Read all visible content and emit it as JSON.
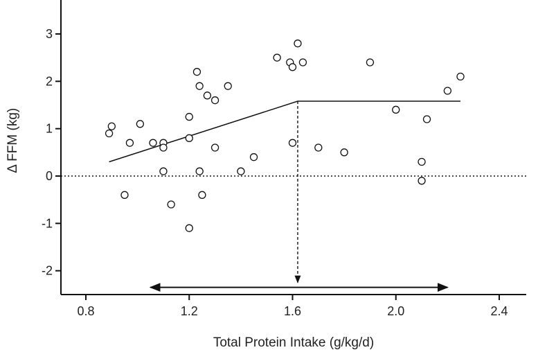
{
  "chart_data": {
    "type": "scatter",
    "title": "",
    "xlabel": "Total Protein Intake (g/kg/d)",
    "ylabel": "Δ FFM (kg)",
    "xlim": [
      0.7,
      2.5
    ],
    "ylim": [
      -2.5,
      3.7
    ],
    "x_ticks": [
      0.8,
      1.2,
      1.6,
      2.0,
      2.4
    ],
    "x_tick_labels": [
      "0.8",
      "1.2",
      "1.6",
      "2.0",
      "2.4"
    ],
    "y_ticks": [
      -2,
      -1,
      0,
      1,
      2,
      3
    ],
    "y_tick_labels": [
      "-2",
      "-1",
      "0",
      "1",
      "2",
      "3"
    ],
    "grid": false,
    "points": [
      {
        "x": 0.89,
        "y": 0.9
      },
      {
        "x": 0.9,
        "y": 1.05
      },
      {
        "x": 0.95,
        "y": -0.4
      },
      {
        "x": 0.97,
        "y": 0.7
      },
      {
        "x": 1.01,
        "y": 1.1
      },
      {
        "x": 1.06,
        "y": 0.7
      },
      {
        "x": 1.1,
        "y": 0.7
      },
      {
        "x": 1.1,
        "y": 0.6
      },
      {
        "x": 1.1,
        "y": 0.1
      },
      {
        "x": 1.13,
        "y": -0.6
      },
      {
        "x": 1.2,
        "y": 1.25
      },
      {
        "x": 1.2,
        "y": 0.8
      },
      {
        "x": 1.2,
        "y": -1.1
      },
      {
        "x": 1.23,
        "y": 2.2
      },
      {
        "x": 1.24,
        "y": 1.9
      },
      {
        "x": 1.24,
        "y": 0.1
      },
      {
        "x": 1.25,
        "y": -0.4
      },
      {
        "x": 1.27,
        "y": 1.7
      },
      {
        "x": 1.3,
        "y": 1.6
      },
      {
        "x": 1.3,
        "y": 0.6
      },
      {
        "x": 1.35,
        "y": 1.9
      },
      {
        "x": 1.4,
        "y": 0.1
      },
      {
        "x": 1.45,
        "y": 0.4
      },
      {
        "x": 1.54,
        "y": 2.5
      },
      {
        "x": 1.59,
        "y": 2.4
      },
      {
        "x": 1.6,
        "y": 2.3
      },
      {
        "x": 1.6,
        "y": 0.7
      },
      {
        "x": 1.62,
        "y": 2.8
      },
      {
        "x": 1.64,
        "y": 2.4
      },
      {
        "x": 1.7,
        "y": 0.6
      },
      {
        "x": 1.8,
        "y": 0.5
      },
      {
        "x": 1.9,
        "y": 2.4
      },
      {
        "x": 2.0,
        "y": 1.4
      },
      {
        "x": 2.1,
        "y": 0.3
      },
      {
        "x": 2.1,
        "y": -0.1
      },
      {
        "x": 2.12,
        "y": 1.2
      },
      {
        "x": 2.2,
        "y": 1.8
      },
      {
        "x": 2.25,
        "y": 2.1
      }
    ],
    "fit_line": {
      "type": "broken-line",
      "points": [
        {
          "x": 0.89,
          "y": 0.3
        },
        {
          "x": 1.62,
          "y": 1.58
        },
        {
          "x": 2.25,
          "y": 1.58
        }
      ]
    },
    "zero_reference_line": {
      "y": 0,
      "style": "dotted"
    },
    "breakpoint_marker": {
      "x": 1.62,
      "from_y": 1.58,
      "to_y": -2.25,
      "style": "dashed-arrow"
    },
    "range_arrow": {
      "x_start": 1.05,
      "x_end": 2.2,
      "y": -2.35,
      "style": "double-headed"
    }
  }
}
